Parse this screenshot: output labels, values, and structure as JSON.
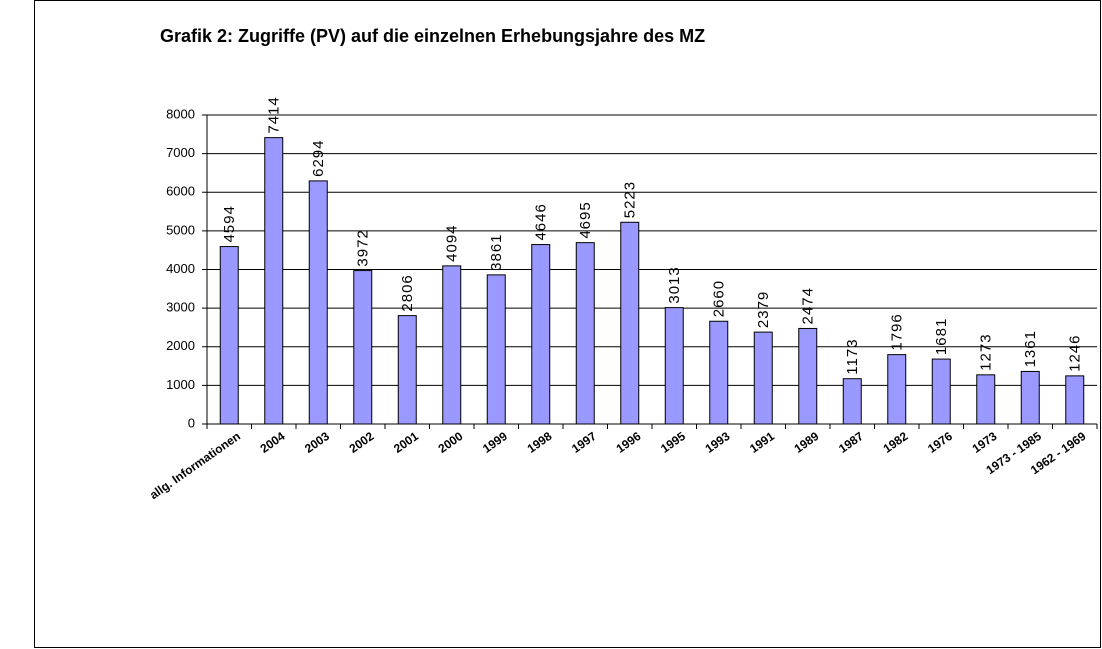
{
  "chart_data": {
    "type": "bar",
    "title": "Grafik 2: Zugriffe (PV) auf die einzelnen Erhebungsjahre des MZ",
    "categories": [
      "allg. Informationen",
      "2004",
      "2003",
      "2002",
      "2001",
      "2000",
      "1999",
      "1998",
      "1997",
      "1996",
      "1995",
      "1993",
      "1991",
      "1989",
      "1987",
      "1982",
      "1976",
      "1973",
      "1973 - 1985",
      "1962 - 1969"
    ],
    "values": [
      4594,
      7414,
      6294,
      3972,
      2806,
      4094,
      3861,
      4646,
      4695,
      5223,
      3013,
      2660,
      2379,
      2474,
      1173,
      1796,
      1681,
      1273,
      1361,
      1246
    ],
    "color": "#9999ff",
    "ylim": [
      0,
      8000
    ],
    "yticks": [
      0,
      1000,
      2000,
      3000,
      4000,
      5000,
      6000,
      7000,
      8000
    ],
    "grid": true
  }
}
